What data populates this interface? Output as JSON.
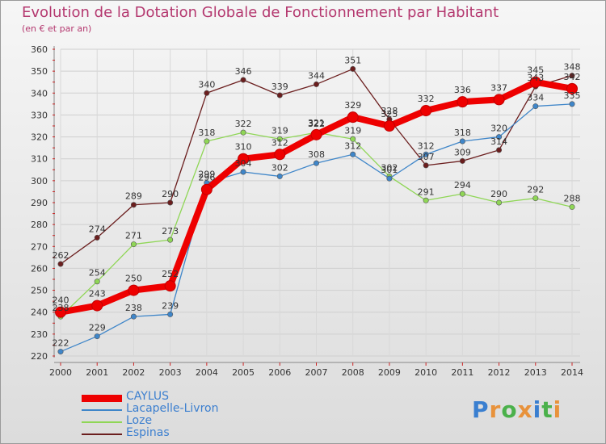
{
  "title": "Evolution de la Dotation Globale de Fonctionnement par Habitant",
  "subtitle": "(en € et par an)",
  "logo": {
    "text": "Proxiti",
    "letter_colors": [
      "#3a7fd0",
      "#e8923b",
      "#4bb14b",
      "#e8923b",
      "#3a7fd0",
      "#4bb14b",
      "#e8923b"
    ]
  },
  "chart_data": {
    "type": "line",
    "x": [
      "2000",
      "2001",
      "2002",
      "2003",
      "2004",
      "2005",
      "2006",
      "2007",
      "2008",
      "2009",
      "2010",
      "2011",
      "2012",
      "2013",
      "2014"
    ],
    "ylim": [
      220,
      360
    ],
    "yticks": [
      220,
      230,
      240,
      250,
      260,
      270,
      280,
      290,
      300,
      310,
      320,
      330,
      340,
      350,
      360
    ],
    "grid": true,
    "legend_position": "bottom-left",
    "series": [
      {
        "name": "Espinas",
        "color": "#6b1e1e",
        "values": [
          262,
          274,
          289,
          290,
          340,
          346,
          339,
          344,
          351,
          328,
          307,
          309,
          314,
          343,
          348
        ]
      },
      {
        "name": "Loze",
        "color": "#8fd656",
        "values": [
          238,
          254,
          271,
          273,
          318,
          322,
          319,
          322,
          319,
          302,
          291,
          294,
          290,
          292,
          288
        ]
      },
      {
        "name": "Lacapelle-Livron",
        "color": "#3f86c9",
        "values": [
          222,
          229,
          238,
          239,
          299,
          304,
          302,
          308,
          312,
          301,
          312,
          318,
          320,
          334,
          335
        ]
      },
      {
        "name": "CAYLUS",
        "color": "#ee0000",
        "values": [
          240,
          243,
          250,
          252,
          296,
          310,
          312,
          321,
          329,
          325,
          332,
          336,
          337,
          345,
          342
        ]
      }
    ],
    "legend_order": [
      "CAYLUS",
      "Lacapelle-Livron",
      "Loze",
      "Espinas"
    ]
  }
}
